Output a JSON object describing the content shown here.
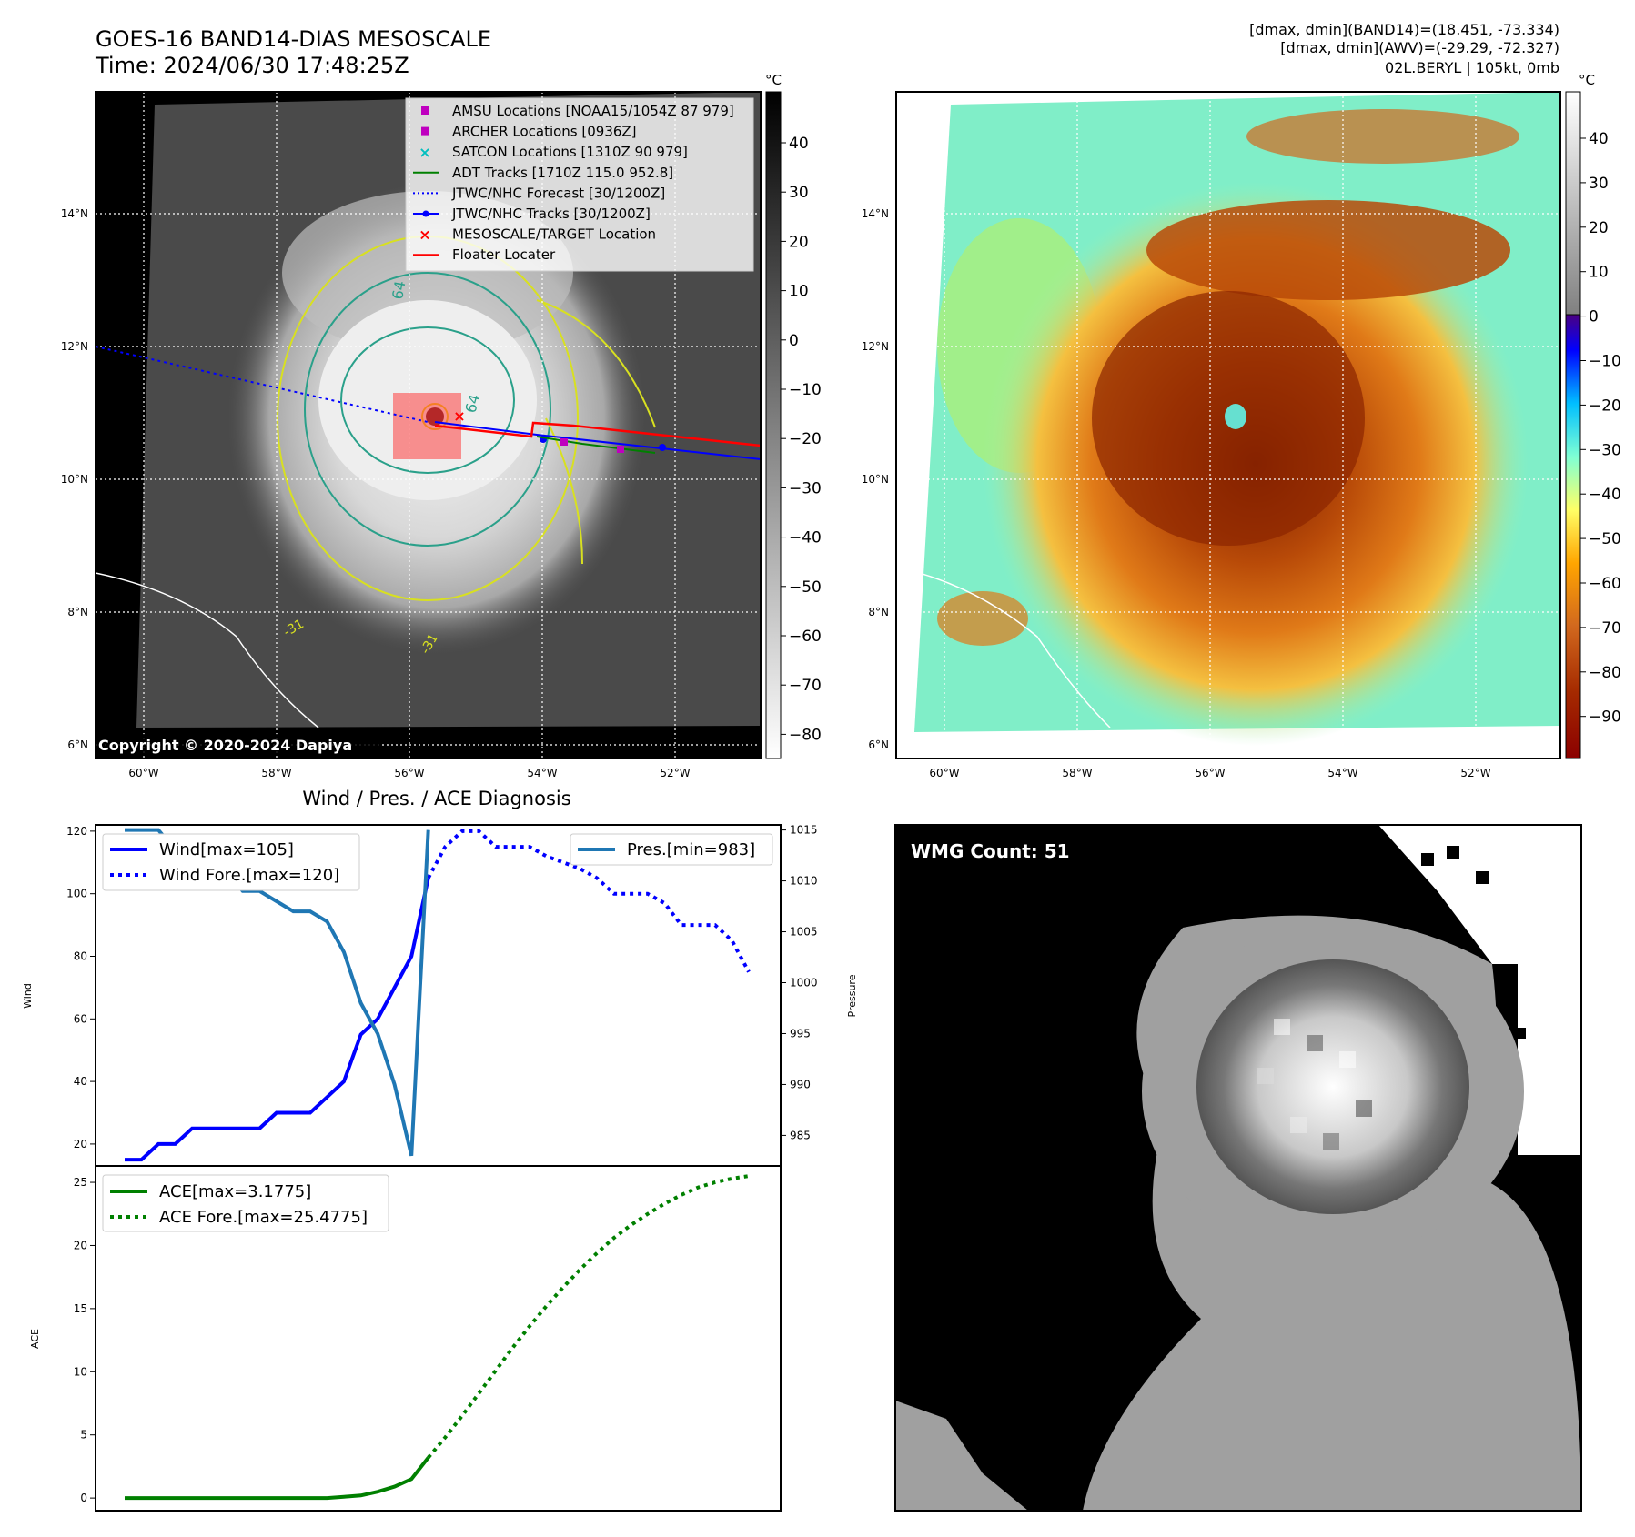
{
  "header": {
    "title": "GOES-16 BAND14-DIAS MESOSCALE",
    "time": "Time: 2024/06/30 17:48:25Z",
    "dmax_band14": "[dmax, dmin](BAND14)=(18.451, -73.334)",
    "dmax_awv": "[dmax, dmin](AWV)=(-29.29, -72.327)",
    "storm": "02L.BERYL | 105kt, 0mb"
  },
  "copyright": "Copyright © 2020-2024 Dapiya",
  "map_axes": {
    "lat_labels": [
      "14°N",
      "12°N",
      "10°N",
      "8°N",
      "6°N"
    ],
    "lon_labels": [
      "60°W",
      "58°W",
      "56°W",
      "54°W",
      "52°W"
    ],
    "colorbar_unit": "°C",
    "gray_colorbar_ticks": [
      "40",
      "30",
      "20",
      "10",
      "0",
      "−10",
      "−20",
      "−30",
      "−40",
      "−50",
      "−60",
      "−70",
      "−80"
    ],
    "color_colorbar_ticks": [
      "40",
      "30",
      "20",
      "10",
      "0",
      "−10",
      "−20",
      "−30",
      "−40",
      "−50",
      "−60",
      "−70",
      "−80",
      "−90"
    ],
    "contour_labels": [
      "64",
      "64",
      "-31",
      "-31"
    ]
  },
  "map_legend": [
    {
      "label": "AMSU Locations [NOAA15/1054Z 87 979]",
      "marker": "square",
      "color": "#bf00bf"
    },
    {
      "label": "ARCHER Locations [0936Z]",
      "marker": "square",
      "color": "#bf00bf"
    },
    {
      "label": "SATCON Locations [1310Z 90 979]",
      "marker": "x",
      "color": "#00bfbf"
    },
    {
      "label": "ADT Tracks [1710Z 115.0 952.8]",
      "marker": "line",
      "color": "#008000"
    },
    {
      "label": "JTWC/NHC Forecast [30/1200Z]",
      "marker": "dotted",
      "color": "#0000ff"
    },
    {
      "label": "JTWC/NHC Tracks [30/1200Z]",
      "marker": "line-dot",
      "color": "#0000ff"
    },
    {
      "label": "MESOSCALE/TARGET Location",
      "marker": "x",
      "color": "#ff0000"
    },
    {
      "label": "Floater Locater",
      "marker": "line",
      "color": "#ff0000"
    }
  ],
  "diagnosis": {
    "title": "Wind / Pres. / ACE Diagnosis",
    "wind_label": "Wind",
    "pressure_label": "Pressure",
    "ace_label": "ACE",
    "legend_wind": "Wind[max=105]",
    "legend_wind_fore": "Wind Fore.[max=120]",
    "legend_pres": "Pres.[min=983]",
    "legend_ace": "ACE[max=3.1775]",
    "legend_ace_fore": "ACE Fore.[max=25.4775]"
  },
  "wmg": {
    "label": "WMG Count: 51"
  },
  "colors": {
    "wind": "#0000ff",
    "pressure": "#1f77b4",
    "ace": "#008000"
  },
  "chart_data": [
    {
      "type": "line",
      "title": "Wind / Pres. / ACE Diagnosis",
      "ylabel": "Wind",
      "ylim": [
        13,
        122
      ],
      "yticks": [
        20,
        40,
        60,
        80,
        100,
        120
      ],
      "series": [
        {
          "name": "Wind[max=105]",
          "x": [
            0,
            1,
            2,
            3,
            4,
            5,
            6,
            7,
            8,
            9,
            10,
            11,
            12,
            13,
            14,
            15,
            16,
            17,
            18
          ],
          "values": [
            15,
            15,
            20,
            20,
            25,
            25,
            25,
            25,
            25,
            30,
            30,
            30,
            35,
            40,
            55,
            60,
            70,
            80,
            105
          ]
        },
        {
          "name": "Wind Fore.[max=120]",
          "x": [
            18,
            19,
            20,
            21,
            22,
            23,
            24,
            25,
            26,
            27,
            28,
            29,
            30,
            31,
            32,
            33,
            34,
            35,
            36,
            37
          ],
          "values": [
            105,
            115,
            120,
            120,
            115,
            115,
            115,
            112,
            110,
            108,
            105,
            100,
            100,
            100,
            97,
            90,
            90,
            90,
            85,
            75
          ]
        }
      ]
    },
    {
      "type": "line",
      "ylabel": "Pressure",
      "ylim": [
        982,
        1015.5
      ],
      "yticks": [
        985,
        990,
        995,
        1000,
        1005,
        1010,
        1015
      ],
      "series": [
        {
          "name": "Pres.[min=983]",
          "x": [
            0,
            1,
            2,
            3,
            4,
            5,
            6,
            7,
            8,
            9,
            10,
            11,
            12,
            13,
            14,
            15,
            16,
            17,
            18
          ],
          "values": [
            1015,
            1015,
            1015,
            1013,
            1012,
            1012,
            1011,
            1009,
            1009,
            1008,
            1007,
            1007,
            1006,
            1003,
            998,
            995,
            990,
            983,
            1015
          ]
        }
      ]
    },
    {
      "type": "line",
      "ylabel": "ACE",
      "ylim": [
        -1,
        26.3
      ],
      "yticks": [
        0,
        5,
        10,
        15,
        20,
        25
      ],
      "series": [
        {
          "name": "ACE[max=3.1775]",
          "x": [
            0,
            1,
            2,
            3,
            4,
            5,
            6,
            7,
            8,
            9,
            10,
            11,
            12,
            13,
            14,
            15,
            16,
            17,
            18
          ],
          "values": [
            0,
            0,
            0,
            0,
            0,
            0,
            0,
            0,
            0,
            0,
            0,
            0,
            0,
            0.1,
            0.2,
            0.5,
            0.9,
            1.5,
            3.2
          ]
        },
        {
          "name": "ACE Fore.[max=25.4775]",
          "x": [
            18,
            19,
            20,
            21,
            22,
            23,
            24,
            25,
            26,
            27,
            28,
            29,
            30,
            31,
            32,
            33,
            34,
            35,
            36,
            37
          ],
          "values": [
            3.2,
            4.8,
            6.5,
            8.3,
            10.1,
            11.9,
            13.6,
            15.2,
            16.7,
            18.1,
            19.4,
            20.6,
            21.6,
            22.5,
            23.3,
            24.0,
            24.6,
            25.0,
            25.3,
            25.5
          ]
        }
      ]
    }
  ]
}
